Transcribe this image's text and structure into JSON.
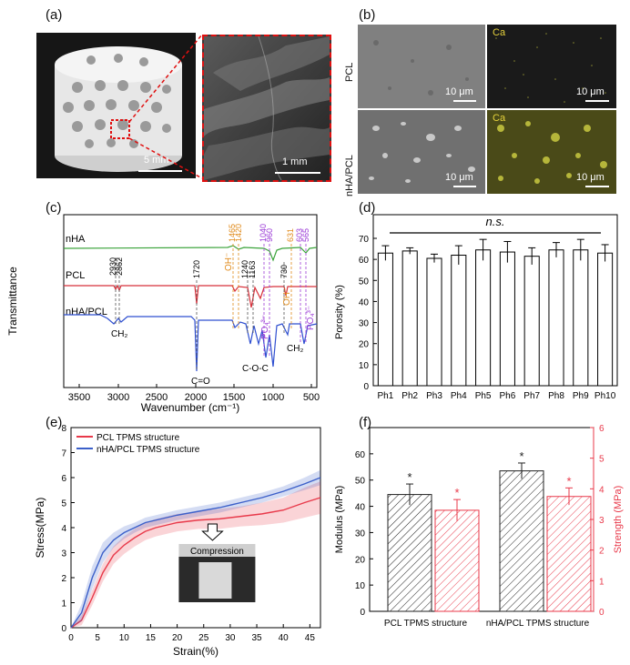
{
  "panels": {
    "a": {
      "label": "(a)",
      "scale_left": "5 mm",
      "scale_right": "1 mm"
    },
    "b": {
      "label": "(b)",
      "row1": "PCL",
      "row2": "nHA/PCL",
      "ca": "Ca",
      "scale": "10 μm"
    },
    "c": {
      "label": "(c)",
      "series": [
        "nHA",
        "PCL",
        "nHA/PCL"
      ],
      "ylabel": "Transmittance",
      "xlabel": "Wavenumber (cm⁻¹)",
      "xticks": [
        "3500",
        "3000",
        "2500",
        "2000",
        "1500",
        "1000",
        "500"
      ],
      "peaks_black": [
        "2930",
        "2862",
        "1720",
        "1240",
        "1163",
        "730"
      ],
      "peaks_orange": [
        "1465",
        "1420",
        "631"
      ],
      "peaks_purple": [
        "1040",
        "960",
        "603",
        "565"
      ],
      "ann": {
        "ch2": "CH₂",
        "co": "C=O",
        "coc": "C-O-C",
        "oh1": "OH⁻",
        "oh2": "OH⁻",
        "po4a": "PO₄³⁻",
        "po4b": "PO₄³⁻"
      }
    },
    "d": {
      "label": "(d)"
    },
    "e": {
      "label": "(e)"
    },
    "f": {
      "label": "(f)"
    }
  },
  "chart_data": [
    {
      "id": "porosity",
      "type": "bar",
      "categories": [
        "Ph1",
        "Ph2",
        "Ph3",
        "Ph4",
        "Ph5",
        "Ph6",
        "Ph7",
        "Ph8",
        "Ph9",
        "Ph10"
      ],
      "values": [
        63,
        64,
        60.5,
        62,
        64.5,
        63.5,
        61.5,
        64.5,
        64.5,
        63
      ],
      "errors": [
        3.5,
        1.5,
        2,
        4.5,
        5,
        5,
        4,
        3.5,
        5,
        4
      ],
      "ylabel": "Porosity (%)",
      "ylim": [
        0,
        70
      ],
      "yticks": [
        "0",
        "10",
        "20",
        "30",
        "40",
        "50",
        "60",
        "70"
      ],
      "annotation": "n.s."
    },
    {
      "id": "stress_strain",
      "type": "line",
      "xlabel": "Strain(%)",
      "ylabel": "Stress(MPa)",
      "xlim": [
        0,
        47
      ],
      "ylim": [
        0,
        8
      ],
      "xticks": [
        "0",
        "5",
        "10",
        "15",
        "20",
        "25",
        "30",
        "35",
        "40",
        "45"
      ],
      "yticks": [
        "0",
        "1",
        "2",
        "3",
        "4",
        "5",
        "6",
        "7",
        "8"
      ],
      "inset_label": "Compression",
      "series": [
        {
          "name": "PCL TPMS structure",
          "color": "#e8394a",
          "x": [
            0,
            2,
            4,
            6,
            8,
            10,
            12,
            14,
            16,
            18,
            20,
            24,
            28,
            32,
            36,
            40,
            44,
            47
          ],
          "y": [
            0,
            0.3,
            1.2,
            2.2,
            2.9,
            3.3,
            3.6,
            3.85,
            4.0,
            4.1,
            4.2,
            4.3,
            4.35,
            4.45,
            4.55,
            4.7,
            5.0,
            5.2
          ],
          "band": [
            0,
            0.2,
            0.3,
            0.35,
            0.35,
            0.35,
            0.35,
            0.35,
            0.35,
            0.35,
            0.35,
            0.35,
            0.4,
            0.4,
            0.45,
            0.5,
            0.6,
            0.65
          ]
        },
        {
          "name": "nHA/PCL TPMS structure",
          "color": "#3b5fc9",
          "x": [
            0,
            2,
            4,
            6,
            8,
            10,
            12,
            14,
            16,
            18,
            20,
            24,
            28,
            32,
            36,
            40,
            44,
            47
          ],
          "y": [
            0,
            0.6,
            2.0,
            3.0,
            3.5,
            3.8,
            4.0,
            4.2,
            4.3,
            4.4,
            4.5,
            4.65,
            4.8,
            5.0,
            5.2,
            5.45,
            5.75,
            6.0
          ],
          "band": [
            0,
            0.35,
            0.45,
            0.4,
            0.3,
            0.25,
            0.2,
            0.2,
            0.2,
            0.2,
            0.2,
            0.2,
            0.2,
            0.2,
            0.2,
            0.2,
            0.25,
            0.3
          ]
        }
      ]
    },
    {
      "id": "mechanical",
      "type": "bar",
      "categories": [
        "PCL TPMS structure",
        "nHA/PCL TPMS structure"
      ],
      "ylabel": "Modulus (MPa)",
      "y2label": "Strength (MPa)",
      "ylim": [
        0,
        70
      ],
      "y2lim": [
        0,
        6
      ],
      "yticks": [
        "0",
        "10",
        "20",
        "30",
        "40",
        "50",
        "60"
      ],
      "y2ticks": [
        "0",
        "1",
        "2",
        "3",
        "4",
        "5",
        "6"
      ],
      "series": [
        {
          "name": "Modulus",
          "axis": "left",
          "color": "#222222",
          "values": [
            44.5,
            53.5
          ],
          "errors": [
            4,
            3
          ],
          "marker": "*"
        },
        {
          "name": "Strength",
          "axis": "right",
          "color": "#e8394a",
          "values": [
            3.3,
            3.75
          ],
          "errors": [
            0.35,
            0.28
          ],
          "marker": "*"
        }
      ]
    }
  ]
}
